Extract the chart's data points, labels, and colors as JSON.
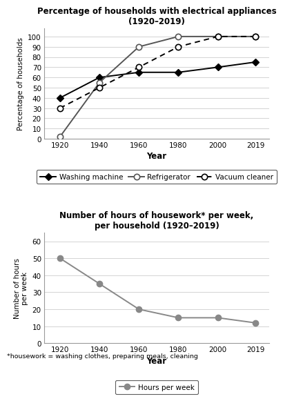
{
  "years": [
    1920,
    1940,
    1960,
    1980,
    2000,
    2019
  ],
  "washing_machine": [
    40,
    60,
    65,
    65,
    70,
    75
  ],
  "refrigerator": [
    2,
    55,
    90,
    100,
    100,
    100
  ],
  "vacuum_cleaner": [
    30,
    50,
    70,
    90,
    100,
    100
  ],
  "hours_per_week": [
    50,
    35,
    20,
    15,
    15,
    12
  ],
  "chart1_title": "Percentage of households with electrical appliances\n(1920–2019)",
  "chart2_title": "Number of hours of housework* per week,\nper household (1920–2019)",
  "chart1_ylabel": "Percentage of households",
  "chart2_ylabel": "Number of hours\nper week",
  "xlabel": "Year",
  "footnote": "*housework = washing clothes, preparing meals, cleaning",
  "dark_gray": "#555555",
  "mid_gray": "#888888",
  "bg_color": "#ffffff"
}
